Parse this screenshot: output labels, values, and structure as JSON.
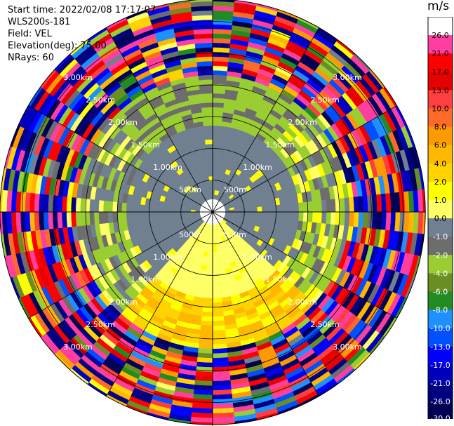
{
  "header": {
    "start_time": "Start time: 2022/02/08 17:17:07",
    "instrument": "WLS200s-181",
    "field": "Field: VEL",
    "elevation": "Elevation(deg): 75.00",
    "nrays": "NRays: 60"
  },
  "colorbar": {
    "unit": "m/s",
    "ticks": [
      "26.0",
      "21.0",
      "17.0",
      "13.0",
      "10.0",
      "8.0",
      "6.0",
      "4.0",
      "2.0",
      "1.0",
      "0.0",
      "-1.0",
      "-2.0",
      "-4.0",
      "-6.0",
      "-8.0",
      "-10.0",
      "-13.0",
      "-17.0",
      "-21.0",
      "-26.0",
      "-30.0"
    ],
    "colors": [
      "#ffffff",
      "#ff3fa0",
      "#ff0000",
      "#e60000",
      "#ff3f3f",
      "#ff6a2a",
      "#ff9900",
      "#ffb800",
      "#ffd200",
      "#ffff00",
      "#ffff66",
      "#708090",
      "#6d6d6d",
      "#9acd32",
      "#6b8e23",
      "#228b22",
      "#1e90ff",
      "#0050ff",
      "#0000ff",
      "#0000bb",
      "#000080",
      "#000055"
    ]
  },
  "chart_data": {
    "type": "heatmap",
    "title": "",
    "projection": "polar PPI",
    "rays": 60,
    "range_rings_km": [
      0.5,
      1.0,
      1.5,
      2.0,
      2.5,
      3.0
    ],
    "range_labels": [
      "500m",
      "1.00km",
      "1.50km",
      "2.00km",
      "2.50km",
      "3.00km"
    ],
    "max_range_km": 3.35,
    "field": "VEL",
    "units": "m/s",
    "velocity_ranges_by_sector": [
      {
        "sector": "north",
        "near_m_s": [
          -1.0,
          0.0
        ],
        "mid_m_s": [
          -4.0,
          -1.0
        ],
        "far_m_s": [
          -30.0,
          26.0
        ]
      },
      {
        "sector": "east",
        "near_m_s": [
          -1.0,
          0.0
        ],
        "mid_m_s": [
          -4.0,
          2.0
        ],
        "far_m_s": [
          -30.0,
          26.0
        ]
      },
      {
        "sector": "south",
        "near_m_s": [
          0.0,
          1.0
        ],
        "mid_m_s": [
          1.0,
          6.0
        ],
        "far_m_s": [
          -30.0,
          26.0
        ]
      },
      {
        "sector": "west",
        "near_m_s": [
          -1.0,
          0.0
        ],
        "mid_m_s": [
          -4.0,
          1.0
        ],
        "far_m_s": [
          -30.0,
          26.0
        ]
      }
    ]
  }
}
